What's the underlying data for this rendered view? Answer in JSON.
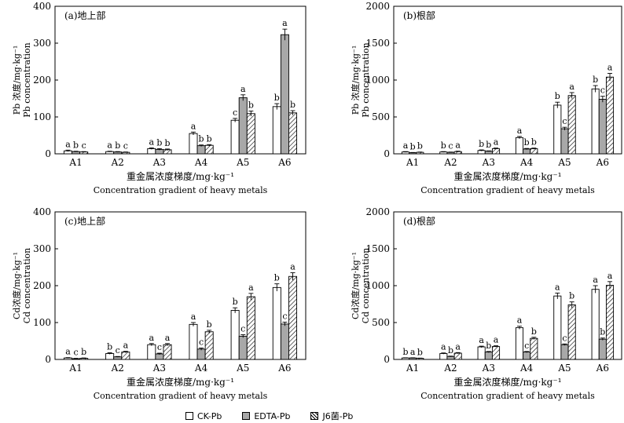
{
  "chart_data": [
    {
      "type": "bar",
      "panel_label": "(a)地上部",
      "ylabel": [
        "Pb 浓度/mg·kg⁻¹",
        "Pb concentration"
      ],
      "xlabel": [
        "重金属浓度梯度/mg·kg⁻¹",
        "Concentration gradient of heavy metals"
      ],
      "ylim": [
        0,
        400
      ],
      "yticks": [
        0,
        100,
        200,
        300,
        400
      ],
      "categories": [
        "A1",
        "A2",
        "A3",
        "A4",
        "A5",
        "A6"
      ],
      "series": [
        {
          "name": "CK-Pb",
          "values": [
            8,
            6,
            14,
            55,
            91,
            128
          ],
          "errors": [
            2,
            1,
            2,
            4,
            5,
            8
          ],
          "letters": [
            "a",
            "a",
            "a",
            "a",
            "c",
            "b"
          ]
        },
        {
          "name": "EDTA-Pb",
          "values": [
            6,
            5,
            12,
            22,
            152,
            323
          ],
          "errors": [
            1,
            1,
            2,
            2,
            8,
            15
          ],
          "letters": [
            "b",
            "b",
            "b",
            "b",
            "a",
            "a"
          ]
        },
        {
          "name": "J6菌-Pb",
          "values": [
            5,
            4,
            11,
            23,
            109,
            111
          ],
          "errors": [
            1,
            1,
            2,
            2,
            7,
            6
          ],
          "letters": [
            "c",
            "c",
            "b",
            "b",
            "b",
            "b"
          ]
        }
      ]
    },
    {
      "type": "bar",
      "panel_label": "(b)根部",
      "ylabel": [
        "Pb 浓度/mg·kg⁻¹",
        "Pb concentration"
      ],
      "xlabel": [
        "重金属浓度梯度/mg·kg⁻¹",
        "Concentration gradient of heavy metals"
      ],
      "ylim": [
        0,
        2000
      ],
      "yticks": [
        0,
        500,
        1000,
        1500,
        2000
      ],
      "categories": [
        "A1",
        "A2",
        "A3",
        "A4",
        "A5",
        "A6"
      ],
      "series": [
        {
          "name": "CK-Pb",
          "values": [
            25,
            25,
            45,
            220,
            660,
            880
          ],
          "errors": [
            5,
            5,
            8,
            15,
            40,
            45
          ],
          "letters": [
            "a",
            "b",
            "b",
            "a",
            "b",
            "b"
          ]
        },
        {
          "name": "EDTA-Pb",
          "values": [
            15,
            20,
            35,
            65,
            340,
            740
          ],
          "errors": [
            3,
            4,
            5,
            8,
            20,
            40
          ],
          "letters": [
            "b",
            "c",
            "b",
            "b",
            "c",
            "c"
          ]
        },
        {
          "name": "J6菌-Pb",
          "values": [
            20,
            30,
            70,
            70,
            790,
            1040
          ],
          "errors": [
            4,
            6,
            8,
            8,
            40,
            50
          ],
          "letters": [
            "b",
            "a",
            "a",
            "b",
            "a",
            "a"
          ]
        }
      ]
    },
    {
      "type": "bar",
      "panel_label": "(c)地上部",
      "ylabel": [
        "Cd浓度/mg·kg⁻¹",
        "Cd concentration"
      ],
      "xlabel": [
        "重金属浓度梯度/mg·kg⁻¹",
        "Concentration gradient of heavy metals"
      ],
      "ylim": [
        0,
        400
      ],
      "yticks": [
        0,
        100,
        200,
        300,
        400
      ],
      "categories": [
        "A1",
        "A2",
        "A3",
        "A4",
        "A5",
        "A6"
      ],
      "series": [
        {
          "name": "CK-Pb",
          "values": [
            4,
            16,
            40,
            95,
            133,
            195
          ],
          "errors": [
            1,
            2,
            3,
            5,
            7,
            10
          ],
          "letters": [
            "a",
            "b",
            "a",
            "a",
            "b",
            "b"
          ]
        },
        {
          "name": "EDTA-Pb",
          "values": [
            2,
            7,
            15,
            28,
            63,
            96
          ],
          "errors": [
            1,
            1,
            2,
            3,
            4,
            5
          ],
          "letters": [
            "c",
            "c",
            "c",
            "c",
            "c",
            "c"
          ]
        },
        {
          "name": "J6菌-Pb",
          "values": [
            3,
            20,
            40,
            75,
            170,
            225
          ],
          "errors": [
            1,
            2,
            3,
            4,
            9,
            10
          ],
          "letters": [
            "b",
            "a",
            "a",
            "b",
            "a",
            "a"
          ]
        }
      ]
    },
    {
      "type": "bar",
      "panel_label": "(d)根部",
      "ylabel": [
        "Cd浓度/mg·kg⁻¹",
        "Cd concentration"
      ],
      "xlabel": [
        "重金属浓度梯度/mg·kg⁻¹",
        "Concentration gradient of heavy metals"
      ],
      "ylim": [
        0,
        2000
      ],
      "yticks": [
        0,
        500,
        1000,
        1500,
        2000
      ],
      "categories": [
        "A1",
        "A2",
        "A3",
        "A4",
        "A5",
        "A6"
      ],
      "series": [
        {
          "name": "CK-Pb",
          "values": [
            20,
            80,
            170,
            430,
            860,
            950
          ],
          "errors": [
            3,
            8,
            10,
            20,
            40,
            50
          ],
          "letters": [
            "b",
            "a",
            "a",
            "a",
            "a",
            "a"
          ]
        },
        {
          "name": "EDTA-Pb",
          "values": [
            20,
            40,
            100,
            100,
            200,
            275
          ],
          "errors": [
            3,
            5,
            8,
            8,
            10,
            15
          ],
          "letters": [
            "a",
            "b",
            "b",
            "c",
            "c",
            "b"
          ]
        },
        {
          "name": "J6菌-Pb",
          "values": [
            15,
            85,
            175,
            285,
            740,
            1005
          ],
          "errors": [
            3,
            8,
            10,
            15,
            40,
            50
          ],
          "letters": [
            "b",
            "a",
            "a",
            "b",
            "b",
            "a"
          ]
        }
      ]
    }
  ],
  "legend": [
    {
      "label": "CK-Pb",
      "fill": "white"
    },
    {
      "label": "EDTA-Pb",
      "fill": "gray"
    },
    {
      "label": "J6菌-Pb",
      "fill": "hatch"
    }
  ],
  "colors": {
    "edta_fill": "#a8a8a8",
    "line": "#000000"
  }
}
